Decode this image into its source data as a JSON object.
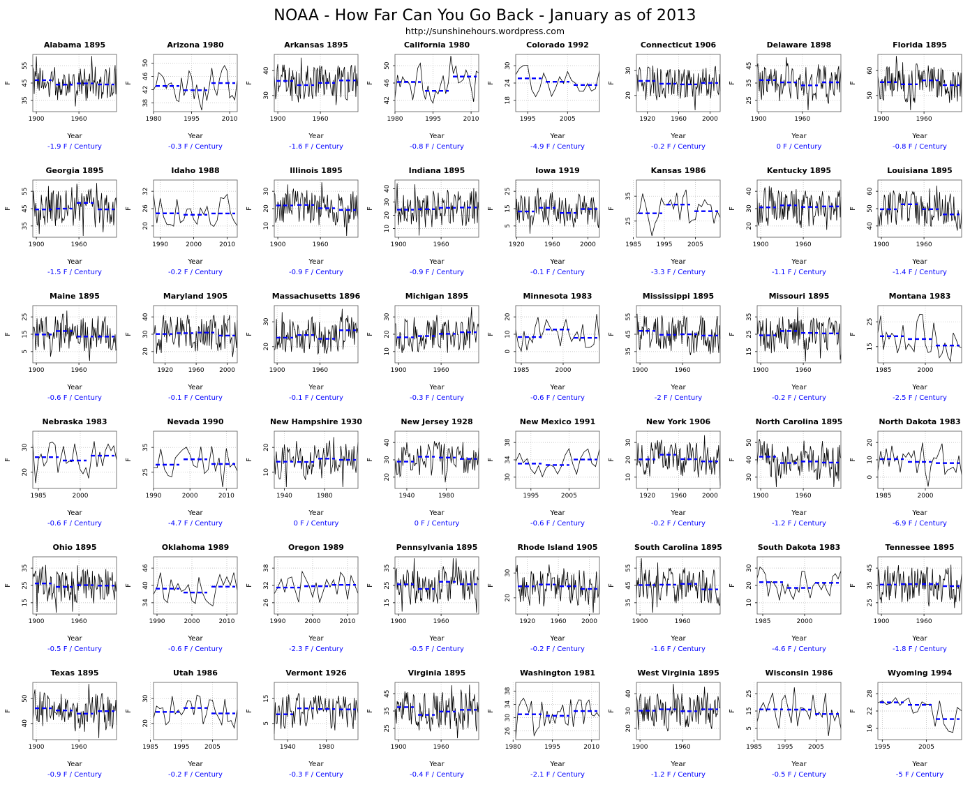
{
  "title": "NOAA - How Far Can You Go Back - January as of 2013",
  "subtitle": "http://sunshinehours.wordpress.com",
  "chart_data": {
    "type": "line",
    "layout": {
      "rows": 6,
      "cols": 8,
      "grid": "dotted",
      "legend": "none"
    },
    "xlabel": "Year",
    "ylabel": "F",
    "series_color": "#000000",
    "trend_color": "#0000ff",
    "end_year": 2013,
    "panels": [
      {
        "state": "Alabama",
        "title": "Alabama 1895",
        "start_year": 1895,
        "trend_label": "-1.9 F / Century",
        "trend_value": -1.9,
        "x_ticks": [
          1900,
          1960
        ],
        "y_ticks": [
          35,
          45,
          55
        ]
      },
      {
        "state": "Arizona",
        "title": "Arizona 1980",
        "start_year": 1980,
        "trend_label": "-0.3 F / Century",
        "trend_value": -0.3,
        "x_ticks": [
          1980,
          1995,
          2010
        ],
        "y_ticks": [
          38,
          42,
          46,
          50
        ]
      },
      {
        "state": "Arkansas",
        "title": "Arkansas 1895",
        "start_year": 1895,
        "trend_label": "-1.6 F / Century",
        "trend_value": -1.6,
        "x_ticks": [
          1900,
          1960
        ],
        "y_ticks": [
          30,
          40
        ]
      },
      {
        "state": "California",
        "title": "California 1980",
        "start_year": 1980,
        "trend_label": "-0.8 F / Century",
        "trend_value": -0.8,
        "x_ticks": [
          1980,
          1995,
          2010
        ],
        "y_ticks": [
          42,
          46,
          50
        ]
      },
      {
        "state": "Colorado",
        "title": "Colorado 1992",
        "start_year": 1992,
        "trend_label": "-4.9 F / Century",
        "trend_value": -4.9,
        "x_ticks": [
          1995,
          2005
        ],
        "y_ticks": [
          18,
          24,
          30
        ]
      },
      {
        "state": "Connecticut",
        "title": "Connecticut 1906",
        "start_year": 1906,
        "trend_label": "-0.2 F / Century",
        "trend_value": -0.2,
        "x_ticks": [
          1920,
          1960,
          2000
        ],
        "y_ticks": [
          20,
          30
        ]
      },
      {
        "state": "Delaware",
        "title": "Delaware 1898",
        "start_year": 1898,
        "trend_label": "0 F / Century",
        "trend_value": 0,
        "x_ticks": [
          1900,
          1960
        ],
        "y_ticks": [
          25,
          35,
          45
        ]
      },
      {
        "state": "Florida",
        "title": "Florida 1895",
        "start_year": 1895,
        "trend_label": "-0.8 F / Century",
        "trend_value": -0.8,
        "x_ticks": [
          1900,
          1960
        ],
        "y_ticks": [
          50,
          60
        ]
      },
      {
        "state": "Georgia",
        "title": "Georgia 1895",
        "start_year": 1895,
        "trend_label": "-1.5 F / Century",
        "trend_value": -1.5,
        "x_ticks": [
          1900,
          1960
        ],
        "y_ticks": [
          35,
          45,
          55
        ]
      },
      {
        "state": "Idaho",
        "title": "Idaho 1988",
        "start_year": 1988,
        "trend_label": "-0.2 F / Century",
        "trend_value": -0.2,
        "x_ticks": [
          1990,
          2000,
          2010
        ],
        "y_ticks": [
          20,
          26,
          32
        ]
      },
      {
        "state": "Illinois",
        "title": "Illinois 1895",
        "start_year": 1895,
        "trend_label": "-0.9 F / Century",
        "trend_value": -0.9,
        "x_ticks": [
          1900,
          1960
        ],
        "y_ticks": [
          10,
          20,
          30
        ]
      },
      {
        "state": "Indiana",
        "title": "Indiana 1895",
        "start_year": 1895,
        "trend_label": "-0.9 F / Century",
        "trend_value": -0.9,
        "x_ticks": [
          1900,
          1960
        ],
        "y_ticks": [
          10,
          20,
          30,
          40
        ]
      },
      {
        "state": "Iowa",
        "title": "Iowa 1919",
        "start_year": 1919,
        "trend_label": "-0.1 F / Century",
        "trend_value": -0.1,
        "x_ticks": [
          1920,
          1960,
          2000
        ],
        "y_ticks": [
          5,
          15,
          25
        ]
      },
      {
        "state": "Kansas",
        "title": "Kansas 1986",
        "start_year": 1986,
        "trend_label": "-3.3 F / Century",
        "trend_value": -3.3,
        "x_ticks": [
          1985,
          1995,
          2005
        ],
        "y_ticks": [
          25,
          35
        ]
      },
      {
        "state": "Kentucky",
        "title": "Kentucky 1895",
        "start_year": 1895,
        "trend_label": "-1.1 F / Century",
        "trend_value": -1.1,
        "x_ticks": [
          1900,
          1960
        ],
        "y_ticks": [
          20,
          30,
          40
        ]
      },
      {
        "state": "Louisiana",
        "title": "Louisiana 1895",
        "start_year": 1895,
        "trend_label": "-1.4 F / Century",
        "trend_value": -1.4,
        "x_ticks": [
          1900,
          1960
        ],
        "y_ticks": [
          40,
          50,
          60
        ]
      },
      {
        "state": "Maine",
        "title": "Maine 1895",
        "start_year": 1895,
        "trend_label": "-0.6 F / Century",
        "trend_value": -0.6,
        "x_ticks": [
          1900,
          1960
        ],
        "y_ticks": [
          5,
          15,
          25
        ]
      },
      {
        "state": "Maryland",
        "title": "Maryland 1905",
        "start_year": 1905,
        "trend_label": "-0.1 F / Century",
        "trend_value": -0.1,
        "x_ticks": [
          1920,
          1960,
          2000
        ],
        "y_ticks": [
          20,
          30,
          40
        ]
      },
      {
        "state": "Massachusetts",
        "title": "Massachusetts 1896",
        "start_year": 1896,
        "trend_label": "-0.1 F / Century",
        "trend_value": -0.1,
        "x_ticks": [
          1900,
          1960
        ],
        "y_ticks": [
          20,
          30
        ]
      },
      {
        "state": "Michigan",
        "title": "Michigan 1895",
        "start_year": 1895,
        "trend_label": "-0.3 F / Century",
        "trend_value": -0.3,
        "x_ticks": [
          1900,
          1960
        ],
        "y_ticks": [
          10,
          20,
          30
        ]
      },
      {
        "state": "Minnesota",
        "title": "Minnesota 1983",
        "start_year": 1983,
        "trend_label": "-0.6 F / Century",
        "trend_value": -0.6,
        "x_ticks": [
          1985,
          2000
        ],
        "y_ticks": [
          0,
          10,
          20
        ]
      },
      {
        "state": "Mississippi",
        "title": "Mississippi 1895",
        "start_year": 1895,
        "trend_label": "-2 F / Century",
        "trend_value": -2,
        "x_ticks": [
          1900,
          1960
        ],
        "y_ticks": [
          35,
          45,
          55
        ]
      },
      {
        "state": "Missouri",
        "title": "Missouri 1895",
        "start_year": 1895,
        "trend_label": "-0.2 F / Century",
        "trend_value": -0.2,
        "x_ticks": [
          1900,
          1960
        ],
        "y_ticks": [
          15,
          25,
          35
        ]
      },
      {
        "state": "Montana",
        "title": "Montana 1983",
        "start_year": 1983,
        "trend_label": "-2.5 F / Century",
        "trend_value": -2.5,
        "x_ticks": [
          1985,
          2000
        ],
        "y_ticks": [
          15,
          25
        ]
      },
      {
        "state": "Nebraska",
        "title": "Nebraska 1983",
        "start_year": 1983,
        "trend_label": "-0.6 F / Century",
        "trend_value": -0.6,
        "x_ticks": [
          1985,
          2000
        ],
        "y_ticks": [
          20,
          30
        ]
      },
      {
        "state": "Nevada",
        "title": "Nevada 1990",
        "start_year": 1990,
        "trend_label": "-4.7 F / Century",
        "trend_value": -4.7,
        "x_ticks": [
          1990,
          2000,
          2010
        ],
        "y_ticks": [
          25,
          35
        ]
      },
      {
        "state": "New Hampshire",
        "title": "New Hampshire 1930",
        "start_year": 1930,
        "trend_label": "0 F / Century",
        "trend_value": 0,
        "x_ticks": [
          1940,
          1980
        ],
        "y_ticks": [
          10,
          20
        ]
      },
      {
        "state": "New Jersey",
        "title": "New Jersey 1928",
        "start_year": 1928,
        "trend_label": "0 F / Century",
        "trend_value": 0,
        "x_ticks": [
          1940,
          1980
        ],
        "y_ticks": [
          20,
          30,
          40
        ]
      },
      {
        "state": "New Mexico",
        "title": "New Mexico 1991",
        "start_year": 1991,
        "trend_label": "-0.6 F / Century",
        "trend_value": -0.6,
        "x_ticks": [
          1995,
          2005
        ],
        "y_ticks": [
          30,
          34,
          38
        ]
      },
      {
        "state": "New York",
        "title": "New York 1906",
        "start_year": 1906,
        "trend_label": "-0.2 F / Century",
        "trend_value": -0.2,
        "x_ticks": [
          1920,
          1960,
          2000
        ],
        "y_ticks": [
          10,
          20,
          30
        ]
      },
      {
        "state": "North Carolina",
        "title": "North Carolina 1895",
        "start_year": 1895,
        "trend_label": "-1.2 F / Century",
        "trend_value": -1.2,
        "x_ticks": [
          1900,
          1960
        ],
        "y_ticks": [
          30,
          40,
          50
        ]
      },
      {
        "state": "North Dakota",
        "title": "North Dakota 1983",
        "start_year": 1983,
        "trend_label": "-6.9 F / Century",
        "trend_value": -6.9,
        "x_ticks": [
          1985,
          2000
        ],
        "y_ticks": [
          0,
          10,
          20
        ]
      },
      {
        "state": "Ohio",
        "title": "Ohio 1895",
        "start_year": 1895,
        "trend_label": "-0.5 F / Century",
        "trend_value": -0.5,
        "x_ticks": [
          1900,
          1960
        ],
        "y_ticks": [
          15,
          25,
          35
        ]
      },
      {
        "state": "Oklahoma",
        "title": "Oklahoma 1989",
        "start_year": 1989,
        "trend_label": "-0.6 F / Century",
        "trend_value": -0.6,
        "x_ticks": [
          1990,
          2000,
          2010
        ],
        "y_ticks": [
          34,
          40,
          46
        ]
      },
      {
        "state": "Oregon",
        "title": "Oregon 1989",
        "start_year": 1989,
        "trend_label": "-2.3 F / Century",
        "trend_value": -2.3,
        "x_ticks": [
          1990,
          2000,
          2010
        ],
        "y_ticks": [
          26,
          32,
          38
        ]
      },
      {
        "state": "Pennsylvania",
        "title": "Pennsylvania 1895",
        "start_year": 1895,
        "trend_label": "-0.5 F / Century",
        "trend_value": -0.5,
        "x_ticks": [
          1900,
          1960
        ],
        "y_ticks": [
          15,
          25,
          35
        ]
      },
      {
        "state": "Rhode Island",
        "title": "Rhode Island 1905",
        "start_year": 1905,
        "trend_label": "-0.2 F / Century",
        "trend_value": -0.2,
        "x_ticks": [
          1920,
          1960,
          2000
        ],
        "y_ticks": [
          20,
          30
        ]
      },
      {
        "state": "South Carolina",
        "title": "South Carolina 1895",
        "start_year": 1895,
        "trend_label": "-1.6 F / Century",
        "trend_value": -1.6,
        "x_ticks": [
          1900,
          1960
        ],
        "y_ticks": [
          35,
          45,
          55
        ]
      },
      {
        "state": "South Dakota",
        "title": "South Dakota 1983",
        "start_year": 1983,
        "trend_label": "-4.6 F / Century",
        "trend_value": -4.6,
        "x_ticks": [
          1985,
          2000
        ],
        "y_ticks": [
          10,
          20,
          30
        ]
      },
      {
        "state": "Tennessee",
        "title": "Tennessee 1895",
        "start_year": 1895,
        "trend_label": "-1.8 F / Century",
        "trend_value": -1.8,
        "x_ticks": [
          1900,
          1960
        ],
        "y_ticks": [
          25,
          35,
          45
        ]
      },
      {
        "state": "Texas",
        "title": "Texas 1895",
        "start_year": 1895,
        "trend_label": "-0.9 F / Century",
        "trend_value": -0.9,
        "x_ticks": [
          1900,
          1960
        ],
        "y_ticks": [
          40,
          50
        ]
      },
      {
        "state": "Utah",
        "title": "Utah 1986",
        "start_year": 1986,
        "trend_label": "-0.2 F / Century",
        "trend_value": -0.2,
        "x_ticks": [
          1985,
          1995,
          2005
        ],
        "y_ticks": [
          20,
          30
        ]
      },
      {
        "state": "Vermont",
        "title": "Vermont 1926",
        "start_year": 1926,
        "trend_label": "-0.3 F / Century",
        "trend_value": -0.3,
        "x_ticks": [
          1940,
          1980
        ],
        "y_ticks": [
          5,
          15
        ]
      },
      {
        "state": "Virginia",
        "title": "Virginia 1895",
        "start_year": 1895,
        "trend_label": "-0.4 F / Century",
        "trend_value": -0.4,
        "x_ticks": [
          1900,
          1960
        ],
        "y_ticks": [
          25,
          35,
          45
        ]
      },
      {
        "state": "Washington",
        "title": "Washington 1981",
        "start_year": 1981,
        "trend_label": "-2.1 F / Century",
        "trend_value": -2.1,
        "x_ticks": [
          1980,
          1995,
          2010
        ],
        "y_ticks": [
          26,
          30,
          34,
          38
        ]
      },
      {
        "state": "West Virginia",
        "title": "West Virginia 1895",
        "start_year": 1895,
        "trend_label": "-1.2 F / Century",
        "trend_value": -1.2,
        "x_ticks": [
          1900,
          1960
        ],
        "y_ticks": [
          20,
          30,
          40
        ]
      },
      {
        "state": "Wisconsin",
        "title": "Wisconsin 1986",
        "start_year": 1986,
        "trend_label": "-0.5 F / Century",
        "trend_value": -0.5,
        "x_ticks": [
          1985,
          1995,
          2005
        ],
        "y_ticks": [
          5,
          15,
          25
        ]
      },
      {
        "state": "Wyoming",
        "title": "Wyoming 1994",
        "start_year": 1994,
        "trend_label": "-5 F / Century",
        "trend_value": -5,
        "x_ticks": [
          1995,
          2005
        ],
        "y_ticks": [
          16,
          22,
          28
        ]
      }
    ]
  }
}
